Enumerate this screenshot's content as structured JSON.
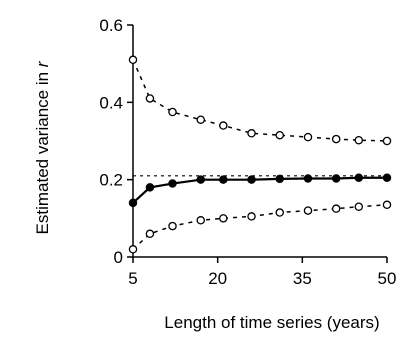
{
  "chart_data": {
    "type": "line",
    "xlabel": "Length of time series (years)",
    "ylabel": "Estimated variance in ",
    "ylabel_symbol": "r",
    "xlim": [
      5,
      50
    ],
    "ylim": [
      0,
      0.6
    ],
    "xticks": [
      5,
      20,
      35,
      50
    ],
    "yticks": [
      0,
      0.2,
      0.4,
      0.6
    ],
    "xtick_labels": [
      "5",
      "20",
      "35",
      "50"
    ],
    "ytick_labels": [
      "0",
      "0.2",
      "0.4",
      "0.6"
    ],
    "reference_line": 0.21,
    "grid": false,
    "x": [
      5,
      8,
      12,
      17,
      21,
      26,
      31,
      36,
      41,
      45,
      50
    ],
    "series": [
      {
        "style": "dashed-open-circles",
        "values": [
          0.51,
          0.41,
          0.375,
          0.355,
          0.34,
          0.32,
          0.315,
          0.31,
          0.305,
          0.302,
          0.3
        ]
      },
      {
        "style": "solid-filled-circles",
        "values": [
          0.14,
          0.18,
          0.19,
          0.2,
          0.2,
          0.2,
          0.202,
          0.203,
          0.203,
          0.205,
          0.205
        ]
      },
      {
        "style": "dashed-open-circles",
        "values": [
          0.02,
          0.06,
          0.08,
          0.095,
          0.1,
          0.105,
          0.115,
          0.12,
          0.125,
          0.13,
          0.135
        ]
      }
    ]
  }
}
